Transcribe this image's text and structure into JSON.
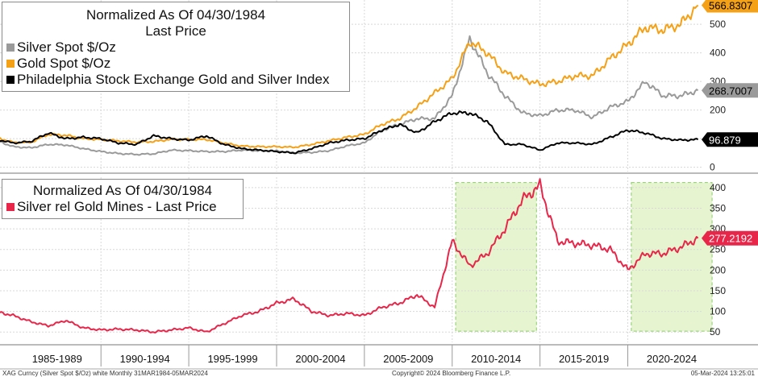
{
  "chart_data": [
    {
      "type": "line",
      "title": "Normalized As Of 04/30/1984",
      "subtitle": "Last Price",
      "ylim": [
        -15,
        585
      ],
      "yticks": [
        0,
        100,
        200,
        300,
        400,
        500
      ],
      "years": [
        1984,
        1985,
        1986,
        1987,
        1988,
        1989,
        1990,
        1991,
        1992,
        1993,
        1994,
        1995,
        1996,
        1997,
        1998,
        1999,
        2000,
        2001,
        2002,
        2003,
        2004,
        2005,
        2006,
        2007,
        2008,
        2009,
        2010,
        2011,
        2012,
        2013,
        2014,
        2015,
        2016,
        2017,
        2018,
        2019,
        2020,
        2021,
        2022,
        2023,
        2024
      ],
      "series": [
        {
          "name": "Silver Spot $/Oz",
          "color": "#9a9a9a",
          "last_label": "268.7007",
          "values": [
            95,
            72,
            68,
            80,
            78,
            65,
            55,
            48,
            45,
            47,
            60,
            58,
            55,
            55,
            60,
            58,
            57,
            50,
            52,
            58,
            75,
            85,
            130,
            150,
            170,
            170,
            250,
            450,
            330,
            250,
            190,
            180,
            200,
            200,
            175,
            210,
            230,
            300,
            250,
            250,
            268.7
          ]
        },
        {
          "name": "Gold Spot $/Oz",
          "color": "#f5a117",
          "last_label": "566.8307",
          "values": [
            105,
            87,
            87,
            115,
            112,
            100,
            97,
            92,
            88,
            90,
            98,
            97,
            97,
            85,
            74,
            72,
            72,
            70,
            80,
            93,
            105,
            115,
            150,
            170,
            210,
            260,
            310,
            440,
            400,
            330,
            310,
            290,
            300,
            320,
            320,
            380,
            430,
            490,
            480,
            500,
            566.8
          ]
        },
        {
          "name": "Philadelphia Stock Exchange Gold and Silver Index",
          "color": "#000000",
          "last_label": "96.879",
          "values": [
            98,
            85,
            90,
            120,
            100,
            105,
            100,
            85,
            80,
            110,
            100,
            95,
            110,
            80,
            65,
            60,
            55,
            50,
            65,
            85,
            95,
            100,
            130,
            150,
            120,
            160,
            190,
            190,
            160,
            80,
            80,
            60,
            85,
            85,
            80,
            105,
            130,
            120,
            100,
            95,
            96.9
          ]
        }
      ]
    },
    {
      "type": "line",
      "title": "Normalized As Of 04/30/1984",
      "ylim": [
        25,
        425
      ],
      "yticks": [
        50,
        100,
        150,
        200,
        250,
        300,
        350,
        400
      ],
      "xlabels": [
        "1985-1989",
        "1990-1994",
        "1995-1999",
        "2000-2004",
        "2005-2009",
        "2010-2014",
        "2015-2019",
        "2020-2024"
      ],
      "highlight_ranges": [
        [
          2010.0,
          2014.0
        ],
        [
          2020.0,
          2024.0
        ]
      ],
      "years": [
        1984,
        1985,
        1986,
        1987,
        1988,
        1989,
        1990,
        1991,
        1992,
        1993,
        1994,
        1995,
        1996,
        1997,
        1998,
        1999,
        2000,
        2001,
        2002,
        2003,
        2004,
        2005,
        2006,
        2007,
        2008,
        2009,
        2010,
        2011,
        2012,
        2013,
        2014,
        2015,
        2016,
        2017,
        2018,
        2019,
        2020,
        2021,
        2022,
        2023,
        2024
      ],
      "series": [
        {
          "name": "Silver rel Gold Mines - Last Price",
          "color": "#e8264a",
          "last_label": "277.2192",
          "values": [
            100,
            90,
            75,
            65,
            78,
            60,
            55,
            57,
            55,
            50,
            55,
            60,
            50,
            70,
            90,
            100,
            120,
            130,
            100,
            90,
            95,
            90,
            110,
            120,
            140,
            110,
            270,
            210,
            240,
            300,
            370,
            405,
            270,
            265,
            260,
            250,
            200,
            240,
            240,
            255,
            277.2
          ]
        }
      ]
    }
  ],
  "legends": {
    "top": {
      "title": "Normalized As Of 04/30/1984",
      "subtitle": "Last Price",
      "items": [
        "Silver Spot $/Oz",
        "Gold Spot $/Oz",
        "Philadelphia Stock Exchange Gold and Silver Index"
      ]
    },
    "bottom": {
      "title": "Normalized As Of 04/30/1984",
      "items": [
        "Silver rel Gold Mines - Last Price"
      ]
    }
  },
  "footer": {
    "left": "XAG Curncy (Silver Spot  $/Oz) white  Monthly 31MAR1984-05MAR2024",
    "center": "Copyright© 2024 Bloomberg Finance L.P.",
    "right": "05-Mar-2024 13:25:01"
  },
  "colors": {
    "silver": "#9a9a9a",
    "gold": "#f5a117",
    "index": "#000000",
    "ratio": "#e8264a",
    "highlight": "#e6f5d0"
  }
}
